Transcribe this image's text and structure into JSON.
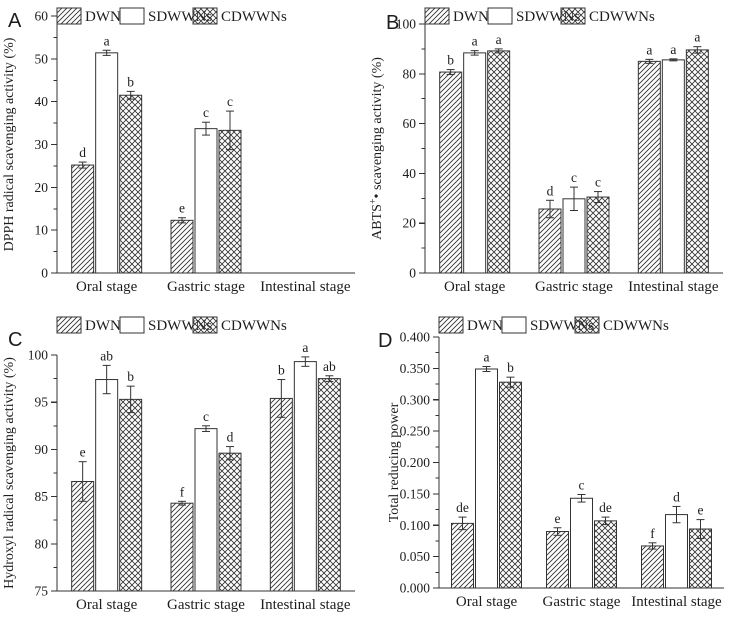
{
  "figure": {
    "description": "Antioxidant activity of DWNs, SDWWNs and CDWWNs during simulated digestion stages",
    "panel_labels": [
      "A",
      "B",
      "C",
      "D"
    ]
  },
  "chart_data": [
    {
      "panel_label": "A",
      "type": "bar",
      "title": "",
      "xlabel": "",
      "ylabel": "DPPH radical scavenging activity (%)",
      "ylim": [
        0,
        60
      ],
      "ytick_step": 10,
      "yminor_step": 5,
      "ydecimals": 0,
      "grid": false,
      "legend_position": "top",
      "categories": [
        "Oral stage",
        "Gastric stage",
        "Intestinal stage"
      ],
      "series": [
        {
          "name": "DWNs",
          "pattern": "diagonal",
          "values": [
            25.2,
            12.3,
            null
          ],
          "errors": [
            0.7,
            0.6,
            null
          ],
          "sig_letters": [
            "d",
            "e",
            ""
          ]
        },
        {
          "name": "SDWWNs",
          "pattern": "none",
          "values": [
            51.4,
            33.7,
            null
          ],
          "errors": [
            0.6,
            1.5,
            null
          ],
          "sig_letters": [
            "a",
            "c",
            ""
          ]
        },
        {
          "name": "CDWWNs",
          "pattern": "crosshatch",
          "values": [
            41.5,
            33.3,
            null
          ],
          "errors": [
            0.9,
            4.5,
            null
          ],
          "sig_letters": [
            "b",
            "c",
            ""
          ]
        }
      ]
    },
    {
      "panel_label": "B",
      "type": "bar",
      "title": "",
      "xlabel": "",
      "ylabel": "ABTS+• scavenging activity (%)",
      "ylabel_rich": [
        {
          "t": "ABTS"
        },
        {
          "t": "+",
          "sup": true
        },
        {
          "t": "• scavenging activity (%)"
        }
      ],
      "ylim": [
        0,
        100
      ],
      "ytick_step": 20,
      "yminor_step": 10,
      "ydecimals": 0,
      "grid": false,
      "legend_position": "top",
      "categories": [
        "Oral stage",
        "Gastric stage",
        "Intestinal stage"
      ],
      "series": [
        {
          "name": "DWNs",
          "pattern": "diagonal",
          "values": [
            80.7,
            25.7,
            85.0
          ],
          "errors": [
            1.0,
            3.5,
            0.8
          ],
          "sig_letters": [
            "b",
            "d",
            "a"
          ]
        },
        {
          "name": "SDWWNs",
          "pattern": "none",
          "values": [
            88.4,
            29.8,
            85.6
          ],
          "errors": [
            0.9,
            4.7,
            0.4
          ],
          "sig_letters": [
            "a",
            "c",
            "a"
          ]
        },
        {
          "name": "CDWWNs",
          "pattern": "crosshatch",
          "values": [
            89.2,
            30.5,
            89.6
          ],
          "errors": [
            0.8,
            2.2,
            1.3
          ],
          "sig_letters": [
            "a",
            "c",
            "a"
          ]
        }
      ]
    },
    {
      "panel_label": "C",
      "type": "bar",
      "title": "",
      "xlabel": "",
      "ylabel": "Hydroxyl radical scavenging activity (%)",
      "ylim": [
        75,
        100
      ],
      "ytick_step": 5,
      "yminor_step": 2.5,
      "ydecimals": 0,
      "grid": false,
      "legend_position": "top",
      "categories": [
        "Oral stage",
        "Gastric stage",
        "Intestinal stage"
      ],
      "series": [
        {
          "name": "DWNs",
          "pattern": "diagonal",
          "values": [
            86.6,
            84.3,
            95.4
          ],
          "errors": [
            2.1,
            0.2,
            2.0
          ],
          "sig_letters": [
            "e",
            "f",
            "b"
          ]
        },
        {
          "name": "SDWWNs",
          "pattern": "none",
          "values": [
            97.4,
            92.2,
            99.3
          ],
          "errors": [
            1.5,
            0.3,
            0.5
          ],
          "sig_letters": [
            "ab",
            "c",
            "a"
          ]
        },
        {
          "name": "CDWWNs",
          "pattern": "crosshatch",
          "values": [
            95.3,
            89.6,
            97.5
          ],
          "errors": [
            1.4,
            0.7,
            0.3
          ],
          "sig_letters": [
            "b",
            "d",
            "ab"
          ]
        }
      ]
    },
    {
      "panel_label": "D",
      "type": "bar",
      "title": "",
      "xlabel": "",
      "ylabel": "Total reducing power",
      "ylim": [
        0,
        0.4
      ],
      "ytick_step": 0.05,
      "yminor_step": 0.025,
      "ydecimals": 3,
      "grid": false,
      "legend_position": "top",
      "categories": [
        "Oral stage",
        "Gastric stage",
        "Intestinal stage"
      ],
      "series": [
        {
          "name": "DWNs",
          "pattern": "diagonal",
          "values": [
            0.103,
            0.09,
            0.067
          ],
          "errors": [
            0.01,
            0.006,
            0.005
          ],
          "sig_letters": [
            "de",
            "e",
            "f"
          ]
        },
        {
          "name": "SDWWNs",
          "pattern": "none",
          "values": [
            0.349,
            0.143,
            0.117
          ],
          "errors": [
            0.004,
            0.006,
            0.013
          ],
          "sig_letters": [
            "a",
            "c",
            "d"
          ]
        },
        {
          "name": "CDWWNs",
          "pattern": "crosshatch",
          "values": [
            0.328,
            0.107,
            0.094
          ],
          "errors": [
            0.008,
            0.006,
            0.015
          ],
          "sig_letters": [
            "b",
            "de",
            "e"
          ]
        }
      ]
    }
  ],
  "style": {
    "line_color": "#333333",
    "text_color": "#1d1d1d",
    "background_color": "#ffffff"
  }
}
